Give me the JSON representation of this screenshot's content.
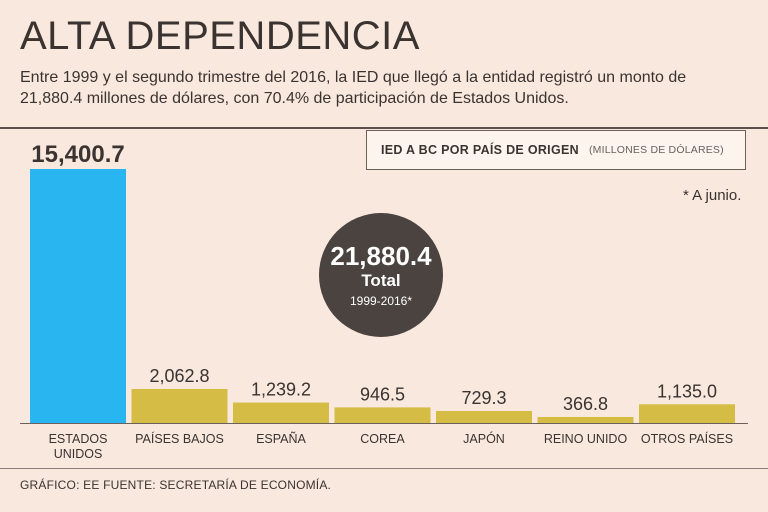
{
  "header": {
    "title": "ALTA DEPENDENCIA",
    "subtitle": "Entre 1999 y el segundo trimestre del 2016, la IED que llegó a la entidad registró un monto de 21,880.4 millones de dólares, con 70.4% de participación de Estados Unidos."
  },
  "legend": {
    "main": "IED A BC POR PAÍS DE ORIGEN",
    "unit": "(MILLONES DE DÓLARES)"
  },
  "note": "* A junio.",
  "total": {
    "value": "21,880.4",
    "label": "Total",
    "range": "1999-2016*"
  },
  "footer": "GRÁFICO: EE  FUENTE: SECRETARÍA DE ECONOMÍA.",
  "colors": {
    "highlight": "#29b6f0",
    "bar": "#d4bc45",
    "text": "#3a3330"
  },
  "chart_data": {
    "type": "bar",
    "title": "IED A BC POR PAÍS DE ORIGEN",
    "ylabel": "Millones de dólares",
    "categories": [
      "ESTADOS UNIDOS",
      "PAÍSES BAJOS",
      "ESPAÑA",
      "COREA",
      "JAPÓN",
      "REINO UNIDO",
      "OTROS PAÍSES"
    ],
    "category_lines": [
      [
        "ESTADOS",
        "UNIDOS"
      ],
      [
        "PAÍSES BAJOS"
      ],
      [
        "ESPAÑA"
      ],
      [
        "COREA"
      ],
      [
        "JAPÓN"
      ],
      [
        "REINO UNIDO"
      ],
      [
        "OTROS PAÍSES"
      ]
    ],
    "values": [
      15400.7,
      2062.8,
      1239.2,
      946.5,
      729.3,
      366.8,
      1135.0
    ],
    "value_labels": [
      "15,400.7",
      "2,062.8",
      "1,239.2",
      "946.5",
      "729.3",
      "366.8",
      "1,135.0"
    ],
    "ylim": [
      0,
      15400.7
    ],
    "highlight_index": 0
  }
}
